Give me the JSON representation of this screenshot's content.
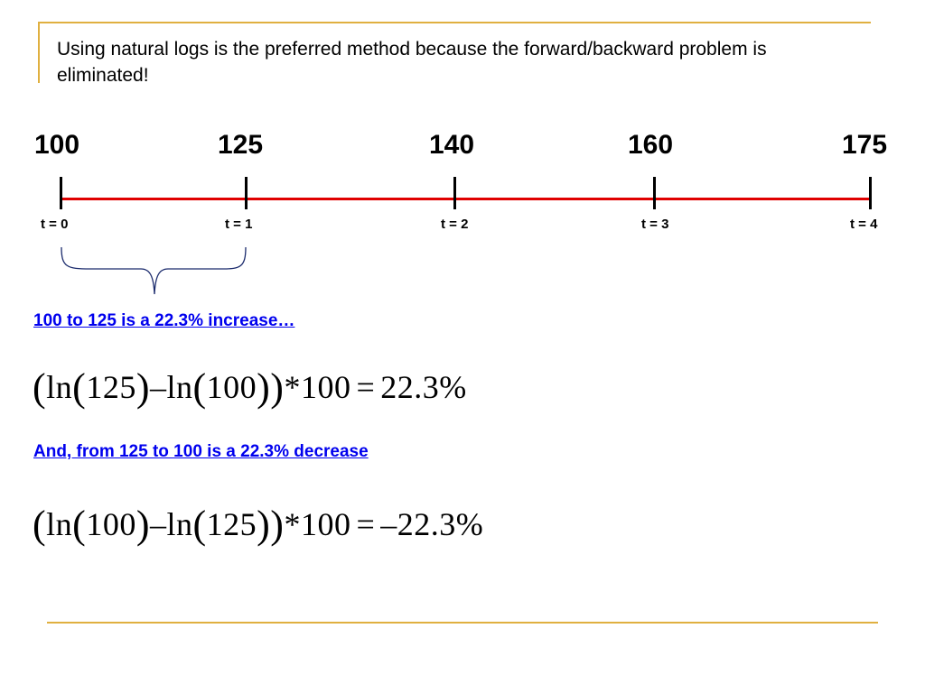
{
  "colors": {
    "accent_rule": "#e0b040",
    "axis_line": "#e00000",
    "link_text": "#0000ee"
  },
  "intro_text": "Using natural logs is the preferred method because the forward/backward problem is eliminated!",
  "timeline": {
    "values": [
      "100",
      "125",
      "140",
      "160",
      "175"
    ],
    "times": [
      "t = 0",
      "t = 1",
      "t = 2",
      "t = 3",
      "t = 4"
    ]
  },
  "statements": {
    "increase": "100 to 125 is a 22.3% increase…",
    "decrease": "And, from 125 to 100 is a 22.3% decrease"
  },
  "equations": {
    "eq1": {
      "ln_a": "ln",
      "a": "125",
      "minus": "–",
      "ln_b": "ln",
      "b": "100",
      "times_100": "*100",
      "equals": "=",
      "result": "22.3%"
    },
    "eq2": {
      "ln_a": "ln",
      "a": "100",
      "minus": "–",
      "ln_b": "ln",
      "b": "125",
      "times_100": "*100",
      "equals": "=",
      "result": "–22.3%"
    }
  }
}
